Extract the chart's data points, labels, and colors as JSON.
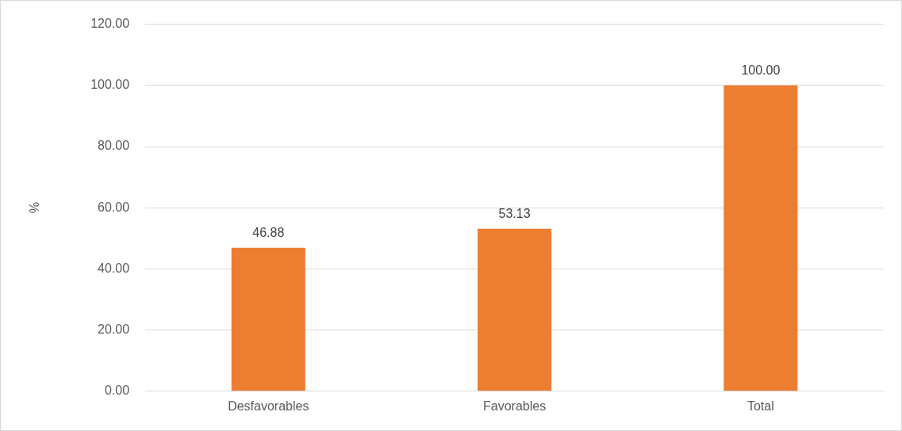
{
  "chart_data": {
    "type": "bar",
    "ylabel": "%",
    "categories": [
      "Desfavorables",
      "Favorables",
      "Total"
    ],
    "values": [
      46.88,
      53.13,
      100
    ],
    "value_labels": [
      "46.88",
      "53.13",
      "100.00"
    ],
    "color": "#ed7d31",
    "ylim": [
      0,
      120
    ],
    "yticks": [
      {
        "value": 0,
        "label": "0.00"
      },
      {
        "value": 20,
        "label": "20.00"
      },
      {
        "value": 40,
        "label": "40.00"
      },
      {
        "value": 60,
        "label": "60.00"
      },
      {
        "value": 80,
        "label": "80.00"
      },
      {
        "value": 100,
        "label": "100.00"
      },
      {
        "value": 120,
        "label": "120.00"
      }
    ],
    "grid": "y",
    "legend": false
  }
}
